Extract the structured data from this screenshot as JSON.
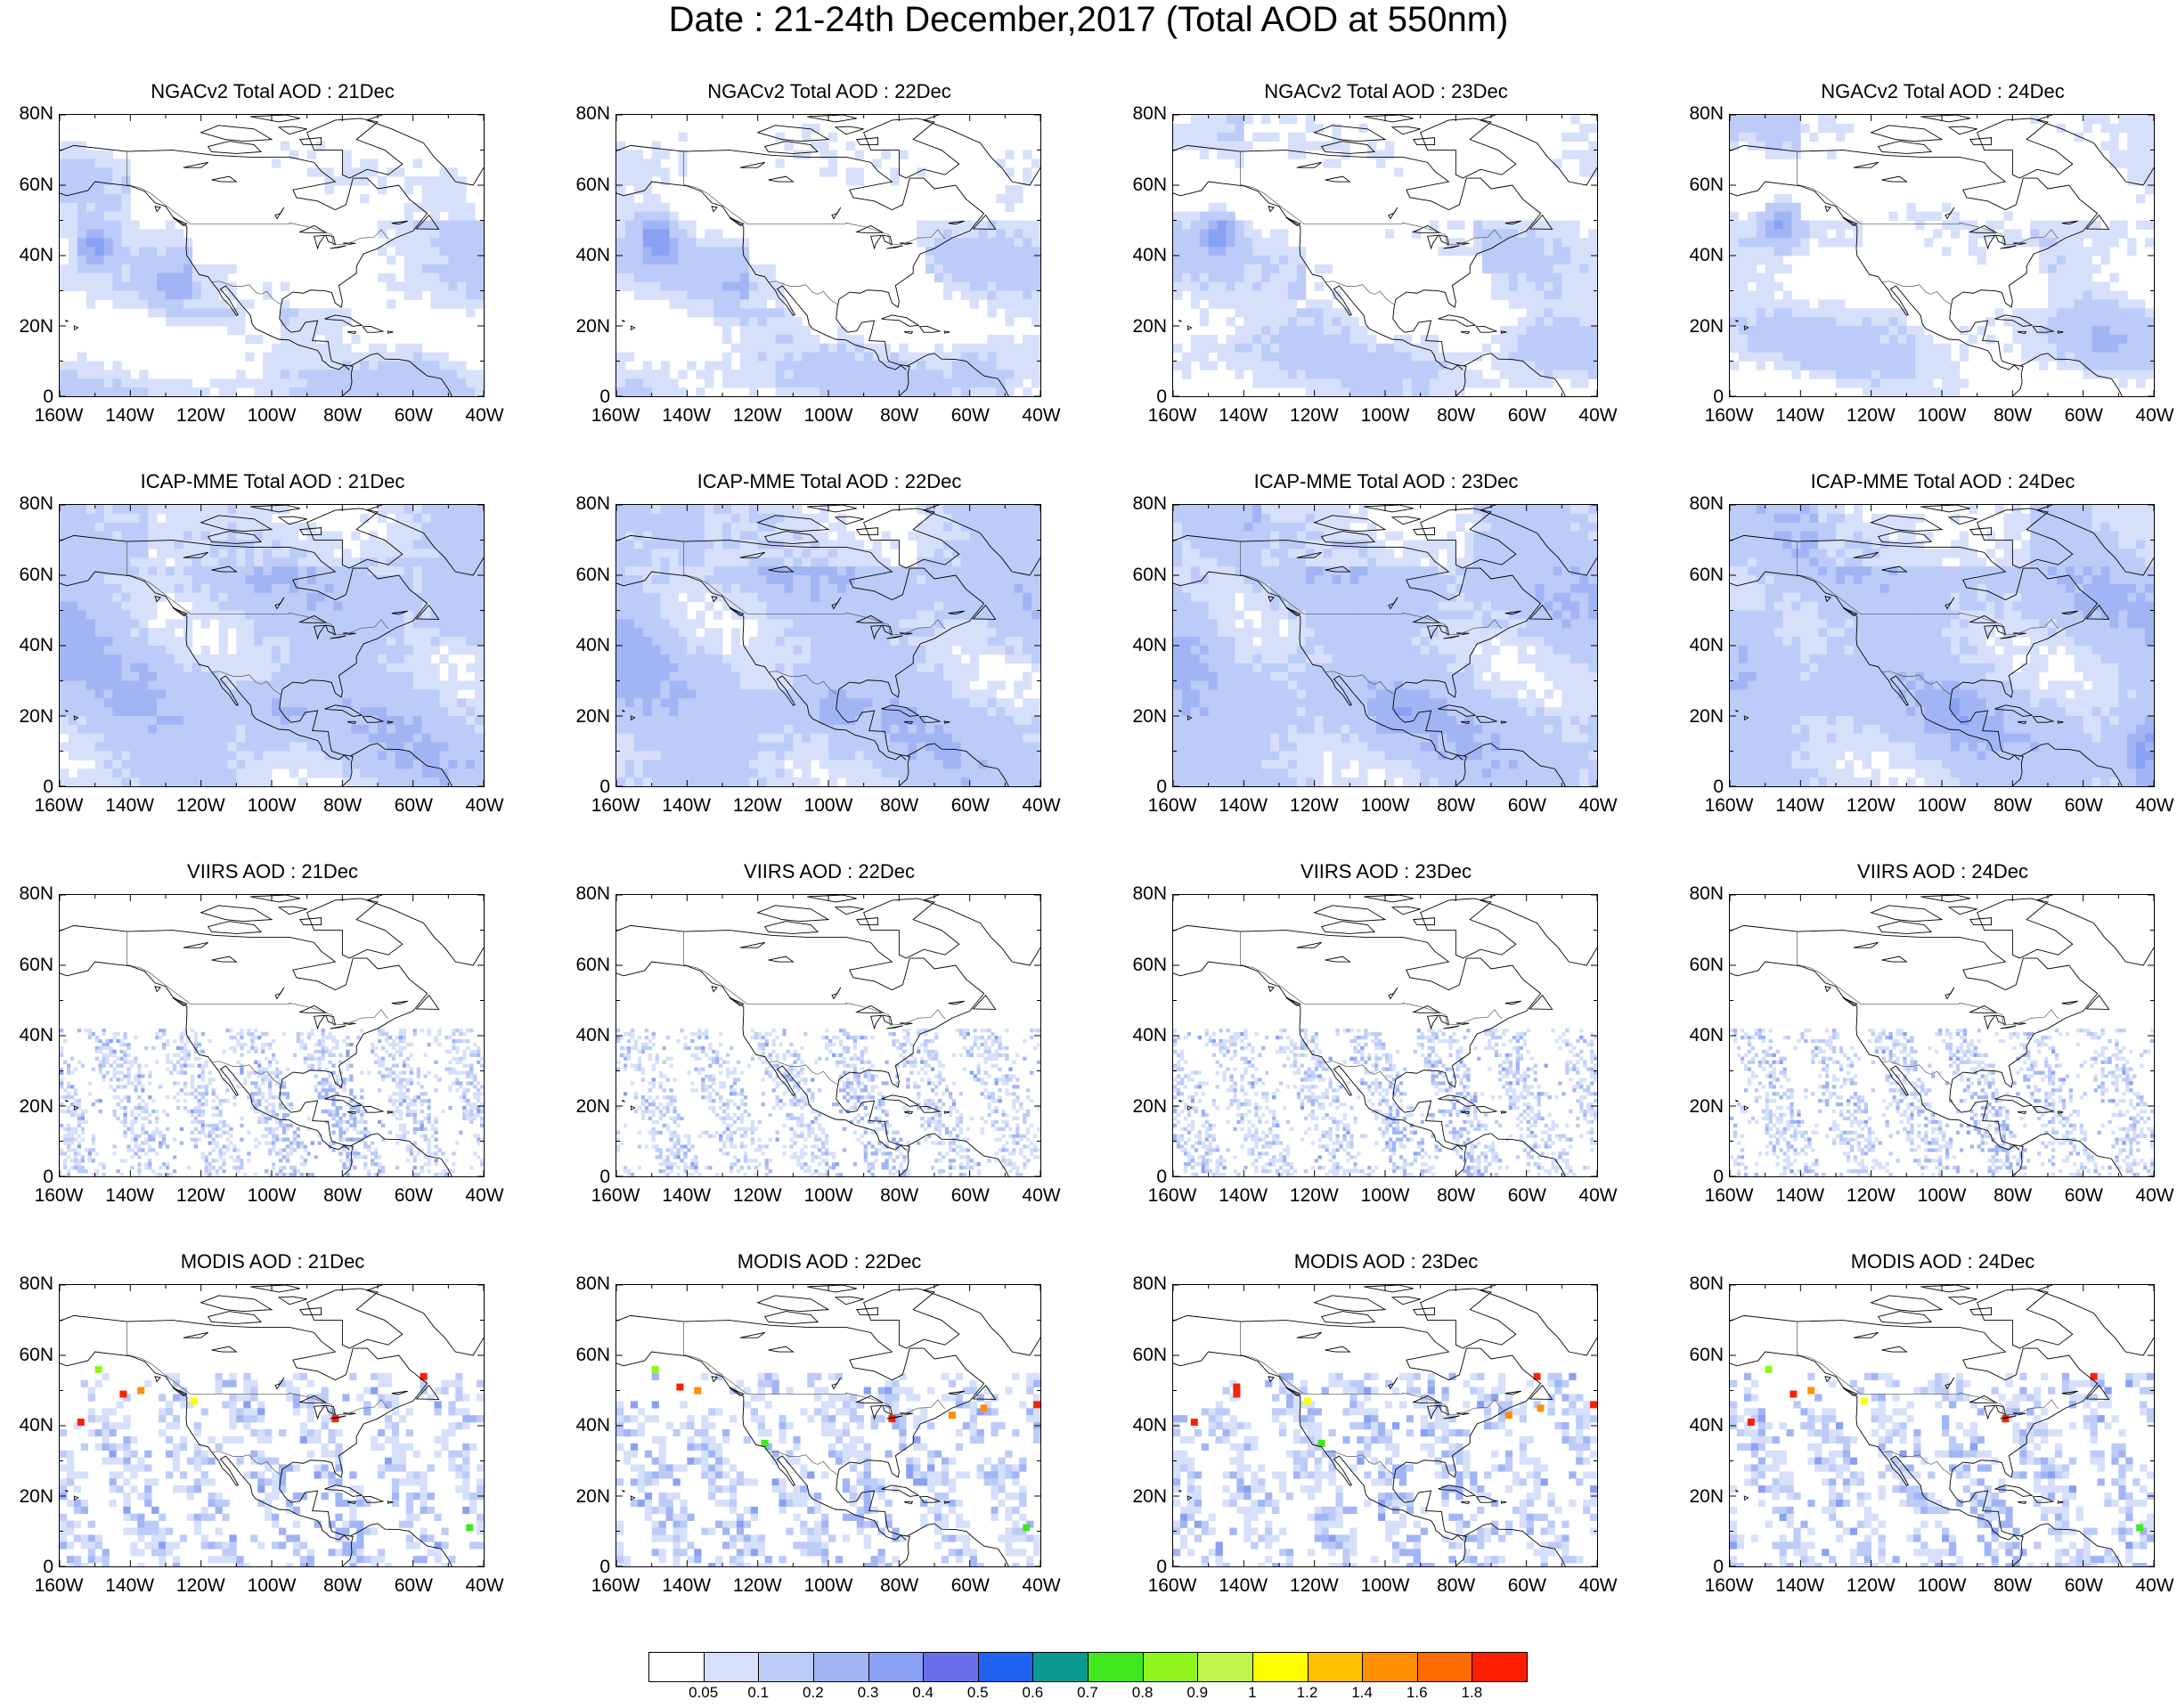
{
  "title": "Date : 21-24th December,2017 (Total AOD at 550nm)",
  "rows": [
    {
      "model": "NGACv2",
      "titles": [
        "NGACv2 Total AOD : 21Dec",
        "NGACv2 Total AOD : 22Dec",
        "NGACv2 Total AOD : 23Dec",
        "NGACv2 Total AOD : 24Dec"
      ]
    },
    {
      "model": "ICAP-MME",
      "titles": [
        "ICAP-MME Total AOD : 21Dec",
        "ICAP-MME Total AOD : 22Dec",
        "ICAP-MME Total AOD : 23Dec",
        "ICAP-MME Total AOD : 24Dec"
      ]
    },
    {
      "model": "VIIRS",
      "titles": [
        "VIIRS AOD : 21Dec",
        "VIIRS AOD : 22Dec",
        "VIIRS AOD : 23Dec",
        "VIIRS AOD : 24Dec"
      ]
    },
    {
      "model": "MODIS",
      "titles": [
        "MODIS AOD : 21Dec",
        "MODIS AOD : 22Dec",
        "MODIS AOD : 23Dec",
        "MODIS AOD : 24Dec"
      ]
    }
  ],
  "axes": {
    "y_ticks": [
      "80N",
      "60N",
      "40N",
      "20N",
      "0"
    ],
    "x_ticks": [
      "160W",
      "140W",
      "120W",
      "100W",
      "80W",
      "60W",
      "40W"
    ],
    "lon_range": [
      -160,
      -40
    ],
    "lat_range": [
      0,
      80
    ]
  },
  "colorbar": {
    "labels": [
      "0.05",
      "0.1",
      "0.2",
      "0.3",
      "0.4",
      "0.5",
      "0.6",
      "0.7",
      "0.8",
      "0.9",
      "1",
      "1.2",
      "1.4",
      "1.6",
      "1.8"
    ],
    "colors": [
      "#ffffff",
      "#d6e0fb",
      "#bccbf8",
      "#a1b5f5",
      "#8aa0f2",
      "#6a70ec",
      "#1f63f0",
      "#0a9a93",
      "#3fe81f",
      "#8ff51c",
      "#c2f54c",
      "#ffff00",
      "#ffc000",
      "#ff9000",
      "#ff6c00",
      "#ff1f00"
    ]
  }
}
